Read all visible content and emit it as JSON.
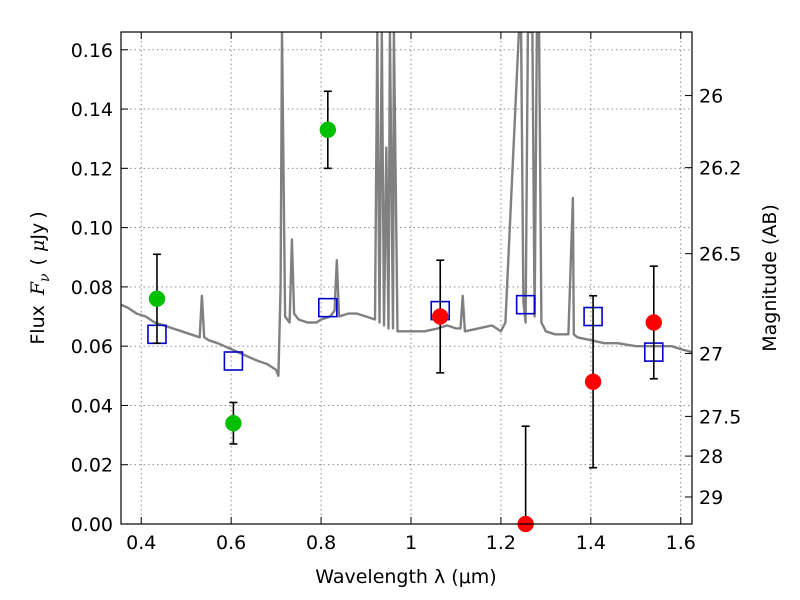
{
  "chart_data": {
    "type": "scatter",
    "xlabel": "Wavelength  λ (μm)",
    "ylabel": "Flux  F<sub>ν</sub>  ( μJy )",
    "ylabel_parts": [
      "Flux",
      "F",
      "ν",
      "(",
      "μ",
      "Jy",
      ")"
    ],
    "y2label": "Magnitude (AB)",
    "xlim": [
      0.355,
      1.625
    ],
    "ylim": [
      0.0,
      0.166
    ],
    "x_ticks": [
      0.4,
      0.6,
      0.8,
      1.0,
      1.2,
      1.4,
      1.6
    ],
    "x_tick_labels": [
      "0.4",
      "0.6",
      "0.8",
      "1",
      "1.2",
      "1.4",
      "1.6"
    ],
    "y_ticks": [
      0.0,
      0.02,
      0.04,
      0.06,
      0.08,
      0.1,
      0.12,
      0.14,
      0.16
    ],
    "y_tick_labels": [
      "0.00",
      "0.02",
      "0.04",
      "0.06",
      "0.08",
      "0.10",
      "0.12",
      "0.14",
      "0.16"
    ],
    "y2_ticks": [
      26,
      26.2,
      26.5,
      27,
      27.5,
      28,
      29
    ],
    "y2_tick_labels": [
      "26",
      "26.2",
      "26.5",
      "27",
      "27.5",
      "28",
      "29"
    ],
    "grid": true,
    "colors": {
      "spectrum": "#808080",
      "model_points": "#0000cc",
      "green_points": "#00c000",
      "red_points": "#ff0000",
      "errorbars": "#000000"
    },
    "series": [
      {
        "marker": "line",
        "x": [
          0.355,
          0.37,
          0.39,
          0.41,
          0.43,
          0.45,
          0.47,
          0.49,
          0.51,
          0.53,
          0.535,
          0.54,
          0.55,
          0.57,
          0.6,
          0.63,
          0.66,
          0.68,
          0.7,
          0.705,
          0.71,
          0.713,
          0.72,
          0.73,
          0.735,
          0.74,
          0.75,
          0.77,
          0.79,
          0.8,
          0.82,
          0.83,
          0.835,
          0.84,
          0.86,
          0.88,
          0.9,
          0.92,
          0.925,
          0.93,
          0.935,
          0.94,
          0.945,
          0.95,
          0.953,
          0.96,
          0.962,
          0.97,
          1.0,
          1.03,
          1.06,
          1.08,
          1.1,
          1.11,
          1.115,
          1.12,
          1.15,
          1.18,
          1.2,
          1.21,
          1.24,
          1.245,
          1.25,
          1.255,
          1.26,
          1.27,
          1.275,
          1.28,
          1.285,
          1.29,
          1.3,
          1.32,
          1.35,
          1.36,
          1.362,
          1.37,
          1.4,
          1.43,
          1.46,
          1.5,
          1.55,
          1.58,
          1.6,
          1.625
        ],
        "y": [
          0.074,
          0.073,
          0.071,
          0.07,
          0.068,
          0.067,
          0.066,
          0.065,
          0.064,
          0.063,
          0.077,
          0.063,
          0.062,
          0.061,
          0.059,
          0.057,
          0.055,
          0.054,
          0.052,
          0.05,
          0.08,
          0.166,
          0.07,
          0.068,
          0.096,
          0.071,
          0.069,
          0.068,
          0.068,
          0.069,
          0.07,
          0.072,
          0.089,
          0.07,
          0.071,
          0.071,
          0.07,
          0.069,
          0.166,
          0.068,
          0.166,
          0.067,
          0.127,
          0.066,
          0.166,
          0.066,
          0.166,
          0.065,
          0.065,
          0.065,
          0.066,
          0.067,
          0.066,
          0.066,
          0.077,
          0.065,
          0.066,
          0.067,
          0.065,
          0.068,
          0.166,
          0.166,
          0.075,
          0.068,
          0.166,
          0.166,
          0.07,
          0.166,
          0.166,
          0.068,
          0.065,
          0.064,
          0.064,
          0.11,
          0.064,
          0.063,
          0.062,
          0.061,
          0.061,
          0.06,
          0.06,
          0.06,
          0.059,
          0.058
        ]
      },
      {
        "marker": "square",
        "x": [
          0.435,
          0.605,
          0.815,
          1.065,
          1.255,
          1.405,
          1.54
        ],
        "y": [
          0.064,
          0.055,
          0.073,
          0.072,
          0.074,
          0.07,
          0.058
        ]
      },
      {
        "marker": "circle",
        "x": [
          0.435,
          0.605,
          0.815
        ],
        "y": [
          0.076,
          0.034,
          0.133
        ],
        "err": [
          0.015,
          0.007,
          0.013
        ]
      },
      {
        "marker": "circle",
        "x": [
          1.065,
          1.255,
          1.405,
          1.54
        ],
        "y": [
          0.07,
          0.0,
          0.048,
          0.068
        ],
        "err": [
          0.019,
          0.033,
          0.029,
          0.019
        ]
      }
    ]
  }
}
